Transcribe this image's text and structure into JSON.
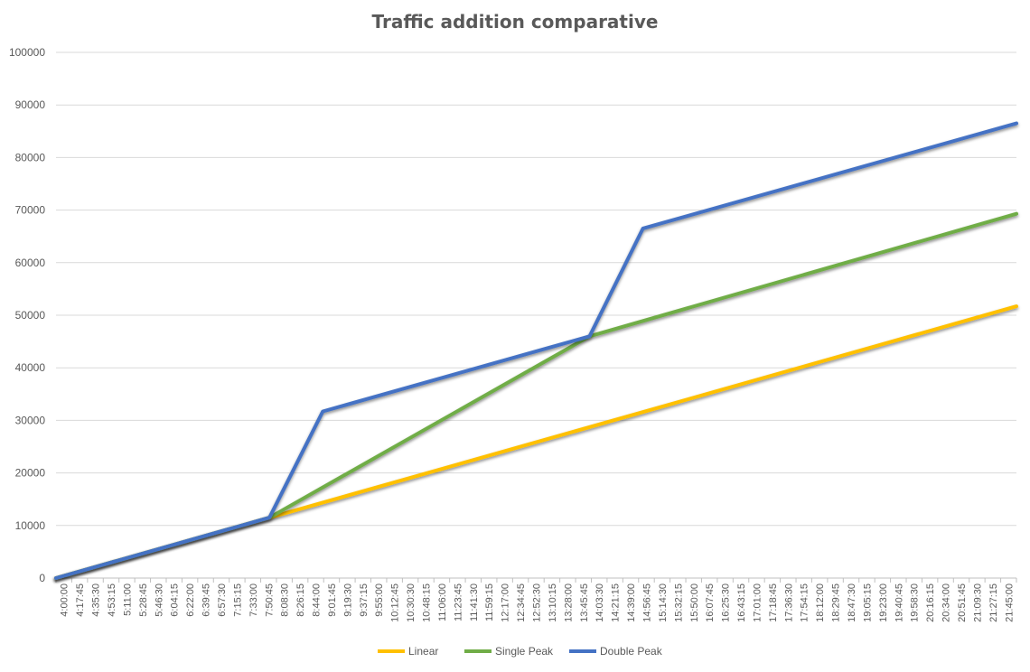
{
  "chart_data": {
    "type": "line",
    "title": "Traffic addition comparative",
    "xlabel": "",
    "ylabel": "",
    "ylim": [
      0,
      100000
    ],
    "yticks": [
      0,
      10000,
      20000,
      30000,
      40000,
      50000,
      60000,
      70000,
      80000,
      90000,
      100000
    ],
    "xlim": [
      "4:00:00",
      "22:00:00"
    ],
    "x_tick_labels": [
      "4:00:00",
      "4:17:45",
      "4:35:30",
      "4:53:15",
      "5:11:00",
      "5:28:45",
      "5:46:30",
      "6:04:15",
      "6:22:00",
      "6:39:45",
      "6:57:30",
      "7:15:15",
      "7:33:00",
      "7:50:45",
      "8:08:30",
      "8:26:15",
      "8:44:00",
      "9:01:45",
      "9:19:30",
      "9:37:15",
      "9:55:00",
      "10:12:45",
      "10:30:30",
      "10:48:15",
      "11:06:00",
      "11:23:45",
      "11:41:30",
      "11:59:15",
      "12:17:00",
      "12:34:45",
      "12:52:30",
      "13:10:15",
      "13:28:00",
      "13:45:45",
      "14:03:30",
      "14:21:15",
      "14:39:00",
      "14:56:45",
      "15:14:30",
      "15:32:15",
      "15:50:00",
      "16:07:45",
      "16:25:30",
      "16:43:15",
      "17:01:00",
      "17:18:45",
      "17:36:30",
      "17:54:15",
      "18:12:00",
      "18:29:45",
      "18:47:30",
      "19:05:15",
      "19:23:00",
      "19:40:45",
      "19:58:30",
      "20:16:15",
      "20:34:00",
      "20:51:45",
      "21:09:30",
      "21:27:15",
      "21:45:00"
    ],
    "grid": true,
    "legend_position": "bottom",
    "series": [
      {
        "name": "Linear",
        "color": "#FFC000",
        "points": [
          [
            "4:00:00",
            0
          ],
          [
            "22:00:00",
            51700
          ]
        ]
      },
      {
        "name": "Single Peak",
        "color": "#70AD47",
        "points": [
          [
            "4:00:00",
            0
          ],
          [
            "8:00:00",
            11500
          ],
          [
            "14:00:00",
            46000
          ],
          [
            "22:00:00",
            69300
          ]
        ]
      },
      {
        "name": "Double Peak",
        "color": "#4472C4",
        "points": [
          [
            "4:00:00",
            0
          ],
          [
            "8:00:00",
            11500
          ],
          [
            "9:00:00",
            31700
          ],
          [
            "14:00:00",
            46000
          ],
          [
            "15:00:00",
            66500
          ],
          [
            "22:00:00",
            86500
          ]
        ]
      }
    ]
  }
}
